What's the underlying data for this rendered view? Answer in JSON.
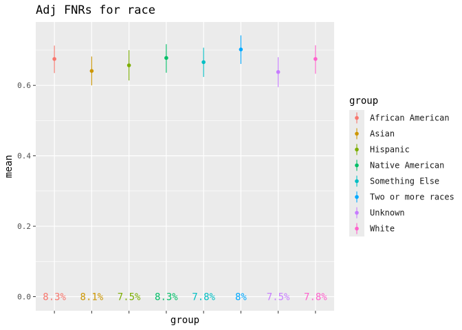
{
  "chart_data": {
    "type": "scatter",
    "title": "Adj FNRs for race",
    "xlabel": "group",
    "ylabel": "mean",
    "ylim": [
      -0.04,
      0.78
    ],
    "yticks": [
      0.0,
      0.2,
      0.4,
      0.6
    ],
    "ytick_labels": [
      "0.0",
      "0.2",
      "0.4",
      "0.6"
    ],
    "grid": true,
    "legend_title": "group",
    "legend_position": "right",
    "categories": [
      "African American",
      "Asian",
      "Hispanic",
      "Native American",
      "Something Else",
      "Two or more races",
      "Unknown",
      "White"
    ],
    "series": [
      {
        "name": "African American",
        "mean": 0.675,
        "lower": 0.635,
        "upper": 0.713,
        "label": "8.3%",
        "color": "#F8766D"
      },
      {
        "name": "Asian",
        "mean": 0.641,
        "lower": 0.6,
        "upper": 0.682,
        "label": "8.1%",
        "color": "#CD9600"
      },
      {
        "name": "Hispanic",
        "mean": 0.657,
        "lower": 0.614,
        "upper": 0.7,
        "label": "7.5%",
        "color": "#7CAE00"
      },
      {
        "name": "Native American",
        "mean": 0.678,
        "lower": 0.636,
        "upper": 0.717,
        "label": "8.3%",
        "color": "#00BE67"
      },
      {
        "name": "Something Else",
        "mean": 0.666,
        "lower": 0.624,
        "upper": 0.707,
        "label": "7.8%",
        "color": "#00BFC4"
      },
      {
        "name": "Two or more races",
        "mean": 0.702,
        "lower": 0.661,
        "upper": 0.742,
        "label": "8%",
        "color": "#00A9FF"
      },
      {
        "name": "Unknown",
        "mean": 0.638,
        "lower": 0.595,
        "upper": 0.68,
        "label": "7.5%",
        "color": "#C77CFF"
      },
      {
        "name": "White",
        "mean": 0.675,
        "lower": 0.633,
        "upper": 0.714,
        "label": "7.8%",
        "color": "#FF61CC"
      }
    ]
  }
}
